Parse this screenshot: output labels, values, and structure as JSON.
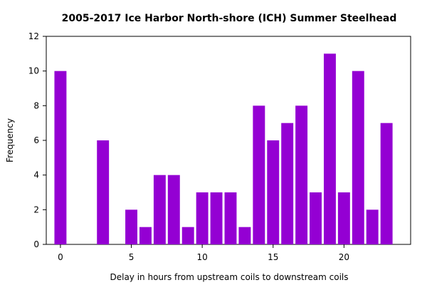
{
  "chart_data": {
    "type": "bar",
    "title": "2005-2017 Ice Harbor North-shore (ICH) Summer Steelhead",
    "xlabel": "Delay in hours from upstream coils to downstream coils",
    "ylabel": "Frequency",
    "xlim": [
      -1,
      24.7
    ],
    "ylim": [
      0,
      12
    ],
    "x_ticks": [
      0,
      5,
      10,
      15,
      20
    ],
    "y_ticks": [
      0,
      2,
      4,
      6,
      8,
      10,
      12
    ],
    "bar_color": "#9400D3",
    "grid": false,
    "x": [
      0,
      1,
      2,
      3,
      4,
      5,
      6,
      7,
      8,
      9,
      10,
      11,
      12,
      13,
      14,
      15,
      16,
      17,
      18,
      19,
      20,
      21,
      22,
      23
    ],
    "values": [
      10,
      0,
      0,
      6,
      0,
      2,
      1,
      4,
      4,
      1,
      3,
      3,
      3,
      1,
      8,
      6,
      7,
      8,
      3,
      11,
      3,
      10,
      2,
      7
    ]
  }
}
